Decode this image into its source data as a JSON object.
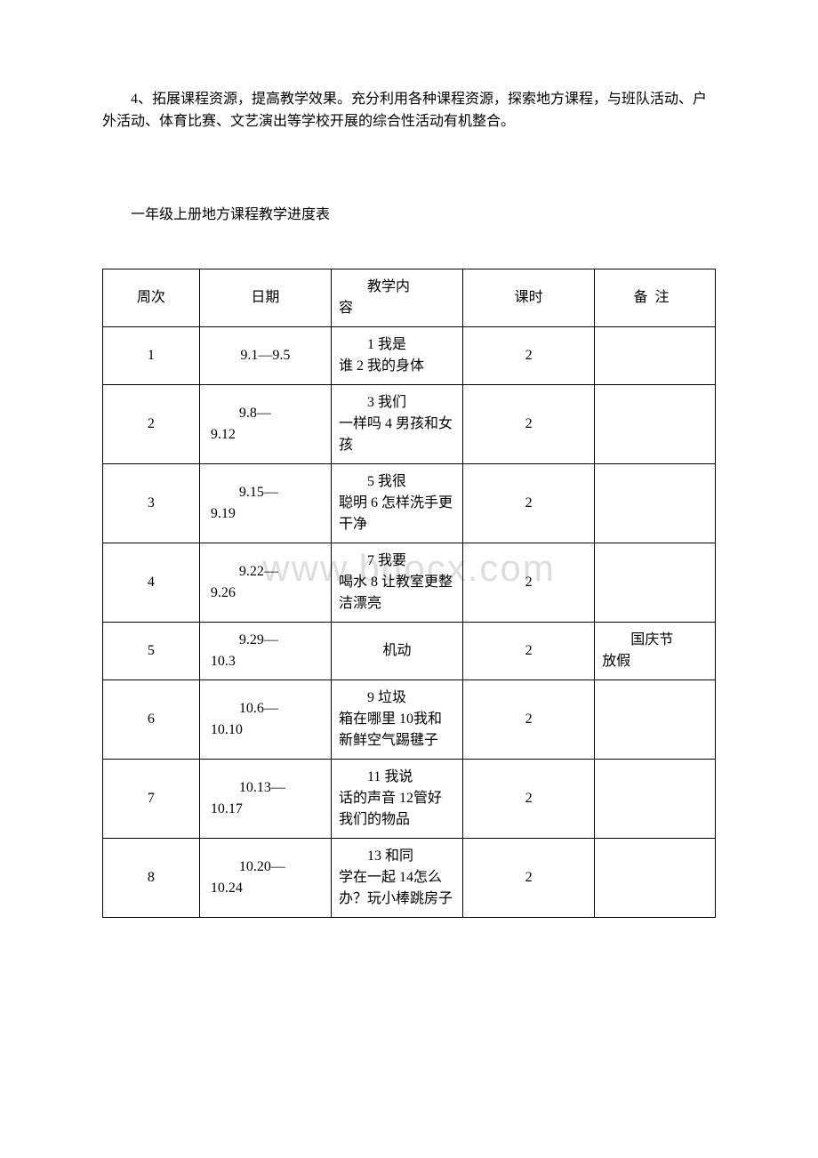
{
  "paragraph4": "4、拓展课程资源，提高教学效果。充分利用各种课程资源，探索地方课程，与班队活动、户外活动、体育比赛、文艺演出等学校开展的综合性活动有机整合。",
  "subtitle": "一年级上册地方课程教学进度表",
  "watermark": "www.bdocx.com",
  "table": {
    "header": {
      "week": "周次",
      "date": "日期",
      "content_l1": "教学内",
      "content_l2": "容",
      "hours": "课时",
      "note": "备注"
    },
    "rows": [
      {
        "week": "1",
        "date_l1": "9.1—9.5",
        "date_l2": "",
        "content_l1": "1 我是",
        "content_l2": "谁 2 我的身体",
        "hours": "2",
        "note_l1": "",
        "note_l2": ""
      },
      {
        "week": "2",
        "date_l1": "9.8—",
        "date_l2": "9.12",
        "content_l1": "3 我们",
        "content_l2": "一样吗 4 男孩和女孩",
        "hours": "2",
        "note_l1": "",
        "note_l2": ""
      },
      {
        "week": "3",
        "date_l1": "9.15—",
        "date_l2": "9.19",
        "content_l1": "5 我很",
        "content_l2": "聪明 6 怎样洗手更干净",
        "hours": "2",
        "note_l1": "",
        "note_l2": ""
      },
      {
        "week": "4",
        "date_l1": "9.22—",
        "date_l2": "9.26",
        "content_l1": "7 我要",
        "content_l2": "喝水 8 让教室更整洁漂亮",
        "hours": "2",
        "note_l1": "",
        "note_l2": ""
      },
      {
        "week": "5",
        "date_l1": "9.29—",
        "date_l2": "10.3",
        "content_l1": "机动",
        "content_l2": "",
        "hours": "2",
        "note_l1": "国庆节",
        "note_l2": "放假"
      },
      {
        "week": "6",
        "date_l1": "10.6—",
        "date_l2": "10.10",
        "content_l1": "9 垃圾",
        "content_l2": "箱在哪里 10我和新鲜空气踢毽子",
        "hours": "2",
        "note_l1": "",
        "note_l2": ""
      },
      {
        "week": "7",
        "date_l1": "10.13—",
        "date_l2": "10.17",
        "content_l1": "11 我说",
        "content_l2": "话的声音 12管好我们的物品",
        "hours": "2",
        "note_l1": "",
        "note_l2": ""
      },
      {
        "week": "8",
        "date_l1": "10.20—",
        "date_l2": "10.24",
        "content_l1": "13 和同",
        "content_l2": "学在一起 14怎么办？玩小棒跳房子",
        "hours": "2",
        "note_l1": "",
        "note_l2": ""
      }
    ]
  }
}
